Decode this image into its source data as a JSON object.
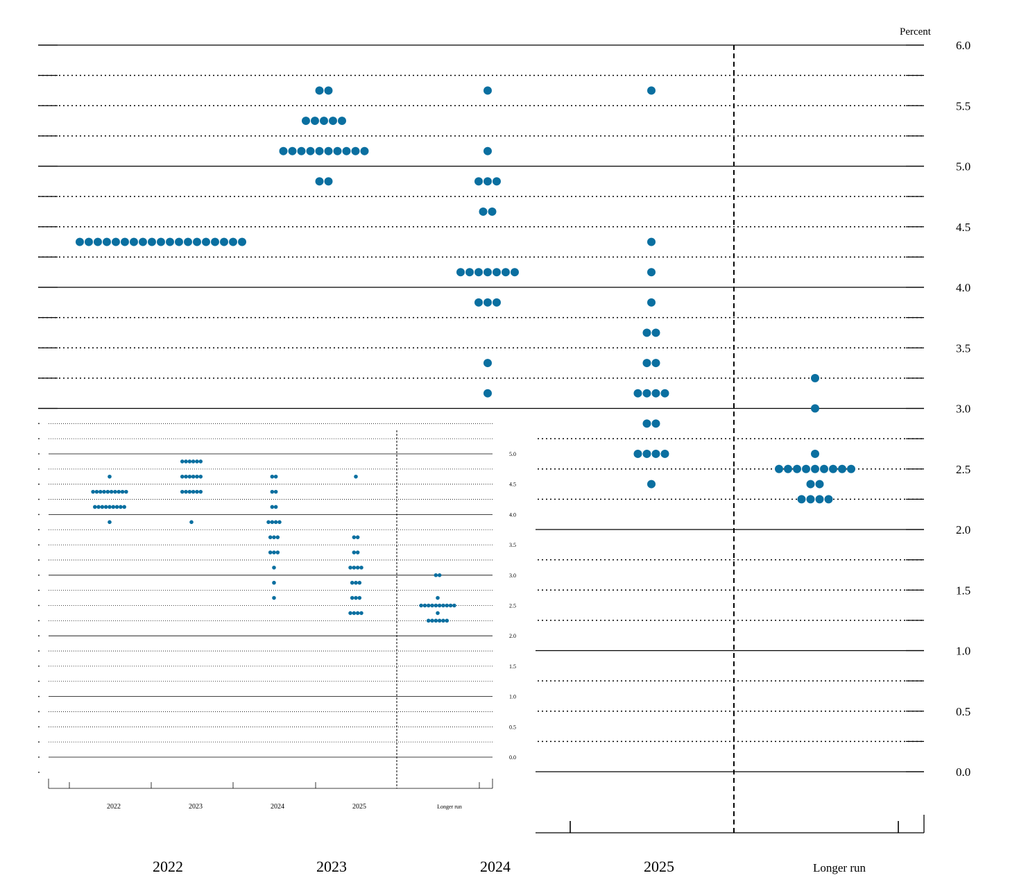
{
  "chart_data": [
    {
      "type": "scatter",
      "title": "",
      "ylabel": "Percent",
      "ylim": [
        0,
        6.0
      ],
      "y_ticks": [
        "0.0",
        "0.5",
        "1.0",
        "1.5",
        "2.0",
        "2.5",
        "3.0",
        "3.5",
        "4.0",
        "4.5",
        "5.0",
        "5.5",
        "6.0"
      ],
      "categories": [
        "2022",
        "2023",
        "2024",
        "2025",
        "Longer run"
      ],
      "grid": true,
      "dots": [
        {
          "category": "2022",
          "y": 4.375,
          "count": 19
        },
        {
          "category": "2023",
          "y": 5.625,
          "count": 2
        },
        {
          "category": "2023",
          "y": 5.375,
          "count": 5
        },
        {
          "category": "2023",
          "y": 5.125,
          "count": 10
        },
        {
          "category": "2023",
          "y": 4.875,
          "count": 2
        },
        {
          "category": "2024",
          "y": 5.625,
          "count": 1
        },
        {
          "category": "2024",
          "y": 5.125,
          "count": 1
        },
        {
          "category": "2024",
          "y": 4.875,
          "count": 3
        },
        {
          "category": "2024",
          "y": 4.625,
          "count": 2
        },
        {
          "category": "2024",
          "y": 4.125,
          "count": 7
        },
        {
          "category": "2024",
          "y": 3.875,
          "count": 3
        },
        {
          "category": "2024",
          "y": 3.375,
          "count": 1
        },
        {
          "category": "2024",
          "y": 3.125,
          "count": 1
        },
        {
          "category": "2025",
          "y": 5.625,
          "count": 1
        },
        {
          "category": "2025",
          "y": 4.375,
          "count": 1
        },
        {
          "category": "2025",
          "y": 4.125,
          "count": 1
        },
        {
          "category": "2025",
          "y": 3.875,
          "count": 1
        },
        {
          "category": "2025",
          "y": 3.625,
          "count": 2
        },
        {
          "category": "2025",
          "y": 3.375,
          "count": 2
        },
        {
          "category": "2025",
          "y": 3.125,
          "count": 4
        },
        {
          "category": "2025",
          "y": 2.875,
          "count": 2
        },
        {
          "category": "2025",
          "y": 2.625,
          "count": 4
        },
        {
          "category": "2025",
          "y": 2.375,
          "count": 1
        },
        {
          "category": "Longer run",
          "y": 3.25,
          "count": 1
        },
        {
          "category": "Longer run",
          "y": 3.0,
          "count": 1
        },
        {
          "category": "Longer run",
          "y": 2.625,
          "count": 1
        },
        {
          "category": "Longer run",
          "y": 2.5,
          "count": 9
        },
        {
          "category": "Longer run",
          "y": 2.375,
          "count": 2
        },
        {
          "category": "Longer run",
          "y": 2.25,
          "count": 4
        }
      ]
    },
    {
      "type": "scatter",
      "title": "",
      "ylabel": "",
      "ylim": [
        0,
        5.0
      ],
      "y_ticks": [
        "0.0",
        "0.5",
        "1.0",
        "1.5",
        "2.0",
        "2.5",
        "3.0",
        "3.5",
        "4.0",
        "4.5",
        "5.0"
      ],
      "categories": [
        "2022",
        "2023",
        "2024",
        "2025",
        "Longer run"
      ],
      "grid": true,
      "dots": [
        {
          "category": "2022",
          "y": 4.625,
          "count": 1
        },
        {
          "category": "2022",
          "y": 4.375,
          "count": 10
        },
        {
          "category": "2022",
          "y": 4.125,
          "count": 9
        },
        {
          "category": "2022",
          "y": 3.875,
          "count": 1
        },
        {
          "category": "2023",
          "y": 4.875,
          "count": 6
        },
        {
          "category": "2023",
          "y": 4.625,
          "count": 6
        },
        {
          "category": "2023",
          "y": 4.375,
          "count": 6
        },
        {
          "category": "2023",
          "y": 3.875,
          "count": 1
        },
        {
          "category": "2024",
          "y": 4.625,
          "count": 2
        },
        {
          "category": "2024",
          "y": 4.375,
          "count": 2
        },
        {
          "category": "2024",
          "y": 4.125,
          "count": 2
        },
        {
          "category": "2024",
          "y": 3.875,
          "count": 4
        },
        {
          "category": "2024",
          "y": 3.625,
          "count": 3
        },
        {
          "category": "2024",
          "y": 3.375,
          "count": 3
        },
        {
          "category": "2024",
          "y": 3.125,
          "count": 1
        },
        {
          "category": "2024",
          "y": 2.875,
          "count": 1
        },
        {
          "category": "2024",
          "y": 2.625,
          "count": 1
        },
        {
          "category": "2025",
          "y": 4.625,
          "count": 1
        },
        {
          "category": "2025",
          "y": 3.625,
          "count": 2
        },
        {
          "category": "2025",
          "y": 3.375,
          "count": 2
        },
        {
          "category": "2025",
          "y": 3.125,
          "count": 4
        },
        {
          "category": "2025",
          "y": 2.875,
          "count": 3
        },
        {
          "category": "2025",
          "y": 2.625,
          "count": 3
        },
        {
          "category": "2025",
          "y": 2.375,
          "count": 4
        },
        {
          "category": "Longer run",
          "y": 3.0,
          "count": 2
        },
        {
          "category": "Longer run",
          "y": 2.625,
          "count": 1
        },
        {
          "category": "Longer run",
          "y": 2.5,
          "count": 10
        },
        {
          "category": "Longer run",
          "y": 2.375,
          "count": 1
        },
        {
          "category": "Longer run",
          "y": 2.25,
          "count": 6
        }
      ]
    }
  ]
}
